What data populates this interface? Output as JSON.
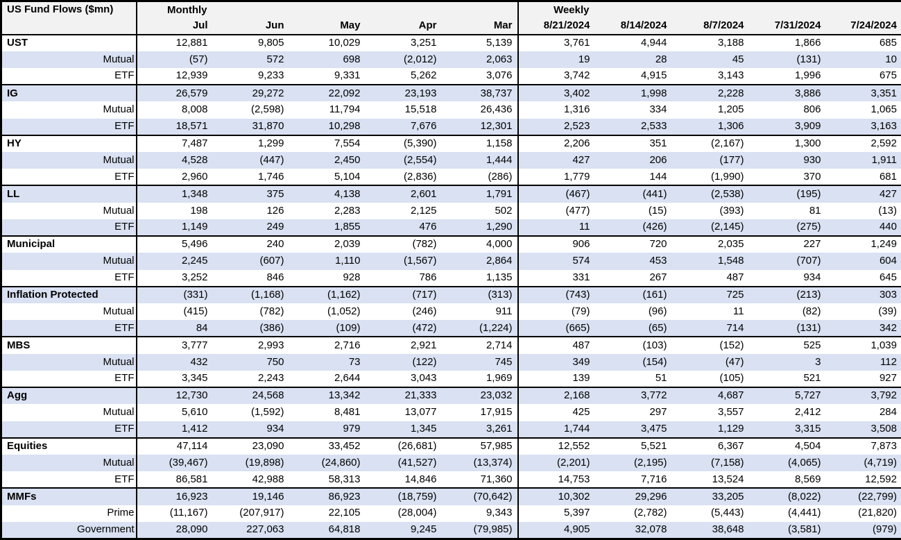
{
  "colors": {
    "stripe_row_bg": "#d9e1f2",
    "header_bg": "#f2f2f2",
    "border": "#000000",
    "text": "#000000",
    "row_bg": "#ffffff"
  },
  "chart_data": {
    "type": "table",
    "title": "US Fund Flows ($mn)",
    "number_format": "negatives in parentheses, thousands separated by commas",
    "column_groups": [
      {
        "label": "Monthly",
        "columns": [
          "Jul",
          "Jun",
          "May",
          "Apr",
          "Mar"
        ]
      },
      {
        "label": "Weekly",
        "columns": [
          "8/21/2024",
          "8/14/2024",
          "8/7/2024",
          "7/31/2024",
          "7/24/2024"
        ]
      }
    ],
    "groups": [
      {
        "name": "UST",
        "rows": [
          {
            "label": "UST",
            "role": "total",
            "values": [
              12881,
              9805,
              10029,
              3251,
              5139,
              3761,
              4944,
              3188,
              1866,
              685
            ]
          },
          {
            "label": "Mutual",
            "role": "sub",
            "values": [
              -57,
              572,
              698,
              -2012,
              2063,
              19,
              28,
              45,
              -131,
              10
            ]
          },
          {
            "label": "ETF",
            "role": "sub",
            "values": [
              12939,
              9233,
              9331,
              5262,
              3076,
              3742,
              4915,
              3143,
              1996,
              675
            ]
          }
        ]
      },
      {
        "name": "IG",
        "rows": [
          {
            "label": "IG",
            "role": "total",
            "values": [
              26579,
              29272,
              22092,
              23193,
              38737,
              3402,
              1998,
              2228,
              3886,
              3351
            ]
          },
          {
            "label": "Mutual",
            "role": "sub",
            "values": [
              8008,
              -2598,
              11794,
              15518,
              26436,
              1316,
              334,
              1205,
              806,
              1065
            ]
          },
          {
            "label": "ETF",
            "role": "sub",
            "values": [
              18571,
              31870,
              10298,
              7676,
              12301,
              2523,
              2533,
              1306,
              3909,
              3163
            ]
          }
        ]
      },
      {
        "name": "HY",
        "rows": [
          {
            "label": "HY",
            "role": "total",
            "values": [
              7487,
              1299,
              7554,
              -5390,
              1158,
              2206,
              351,
              -2167,
              1300,
              2592
            ]
          },
          {
            "label": "Mutual",
            "role": "sub",
            "values": [
              4528,
              -447,
              2450,
              -2554,
              1444,
              427,
              206,
              -177,
              930,
              1911
            ]
          },
          {
            "label": "ETF",
            "role": "sub",
            "values": [
              2960,
              1746,
              5104,
              -2836,
              -286,
              1779,
              144,
              -1990,
              370,
              681
            ]
          }
        ]
      },
      {
        "name": "LL",
        "rows": [
          {
            "label": "LL",
            "role": "total",
            "values": [
              1348,
              375,
              4138,
              2601,
              1791,
              -467,
              -441,
              -2538,
              -195,
              427
            ]
          },
          {
            "label": "Mutual",
            "role": "sub",
            "values": [
              198,
              126,
              2283,
              2125,
              502,
              -477,
              -15,
              -393,
              81,
              -13
            ]
          },
          {
            "label": "ETF",
            "role": "sub",
            "values": [
              1149,
              249,
              1855,
              476,
              1290,
              11,
              -426,
              -2145,
              -275,
              440
            ]
          }
        ]
      },
      {
        "name": "Municipal",
        "rows": [
          {
            "label": "Municipal",
            "role": "total",
            "values": [
              5496,
              240,
              2039,
              -782,
              4000,
              906,
              720,
              2035,
              227,
              1249
            ]
          },
          {
            "label": "Mutual",
            "role": "sub",
            "values": [
              2245,
              -607,
              1110,
              -1567,
              2864,
              574,
              453,
              1548,
              -707,
              604
            ]
          },
          {
            "label": "ETF",
            "role": "sub",
            "values": [
              3252,
              846,
              928,
              786,
              1135,
              331,
              267,
              487,
              934,
              645
            ]
          }
        ]
      },
      {
        "name": "Inflation Protected",
        "rows": [
          {
            "label": "Inflation Protected",
            "role": "total",
            "values": [
              -331,
              -1168,
              -1162,
              -717,
              -313,
              -743,
              -161,
              725,
              -213,
              303
            ]
          },
          {
            "label": "Mutual",
            "role": "sub",
            "values": [
              -415,
              -782,
              -1052,
              -246,
              911,
              -79,
              -96,
              11,
              -82,
              -39
            ]
          },
          {
            "label": "ETF",
            "role": "sub",
            "values": [
              84,
              -386,
              -109,
              -472,
              -1224,
              -665,
              -65,
              714,
              -131,
              342
            ]
          }
        ]
      },
      {
        "name": "MBS",
        "rows": [
          {
            "label": "MBS",
            "role": "total",
            "values": [
              3777,
              2993,
              2716,
              2921,
              2714,
              487,
              -103,
              -152,
              525,
              1039
            ]
          },
          {
            "label": "Mutual",
            "role": "sub",
            "values": [
              432,
              750,
              73,
              -122,
              745,
              349,
              -154,
              -47,
              3,
              112
            ]
          },
          {
            "label": "ETF",
            "role": "sub",
            "values": [
              3345,
              2243,
              2644,
              3043,
              1969,
              139,
              51,
              -105,
              521,
              927
            ]
          }
        ]
      },
      {
        "name": "Agg",
        "rows": [
          {
            "label": "Agg",
            "role": "total",
            "values": [
              12730,
              24568,
              13342,
              21333,
              23032,
              2168,
              3772,
              4687,
              5727,
              3792
            ]
          },
          {
            "label": "Mutual",
            "role": "sub",
            "values": [
              5610,
              -1592,
              8481,
              13077,
              17915,
              425,
              297,
              3557,
              2412,
              284
            ]
          },
          {
            "label": "ETF",
            "role": "sub",
            "values": [
              1412,
              934,
              979,
              1345,
              3261,
              1744,
              3475,
              1129,
              3315,
              3508
            ]
          }
        ]
      },
      {
        "name": "Equities",
        "rows": [
          {
            "label": "Equities",
            "role": "total",
            "values": [
              47114,
              23090,
              33452,
              -26681,
              57985,
              12552,
              5521,
              6367,
              4504,
              7873
            ]
          },
          {
            "label": "Mutual",
            "role": "sub",
            "values": [
              -39467,
              -19898,
              -24860,
              -41527,
              -13374,
              -2201,
              -2195,
              -7158,
              -4065,
              -4719
            ]
          },
          {
            "label": "ETF",
            "role": "sub",
            "values": [
              86581,
              42988,
              58313,
              14846,
              71360,
              14753,
              7716,
              13524,
              8569,
              12592
            ]
          }
        ]
      },
      {
        "name": "MMFs",
        "rows": [
          {
            "label": "MMFs",
            "role": "total",
            "values": [
              16923,
              19146,
              86923,
              -18759,
              -70642,
              10302,
              29296,
              33205,
              -8022,
              -22799
            ]
          },
          {
            "label": "Prime",
            "role": "sub",
            "values": [
              -11167,
              -207917,
              22105,
              -28004,
              9343,
              5397,
              -2782,
              -5443,
              -4441,
              -21820
            ]
          },
          {
            "label": "Government",
            "role": "sub",
            "values": [
              28090,
              227063,
              64818,
              9245,
              -79985,
              4905,
              32078,
              38648,
              -3581,
              -979
            ]
          }
        ]
      }
    ]
  }
}
